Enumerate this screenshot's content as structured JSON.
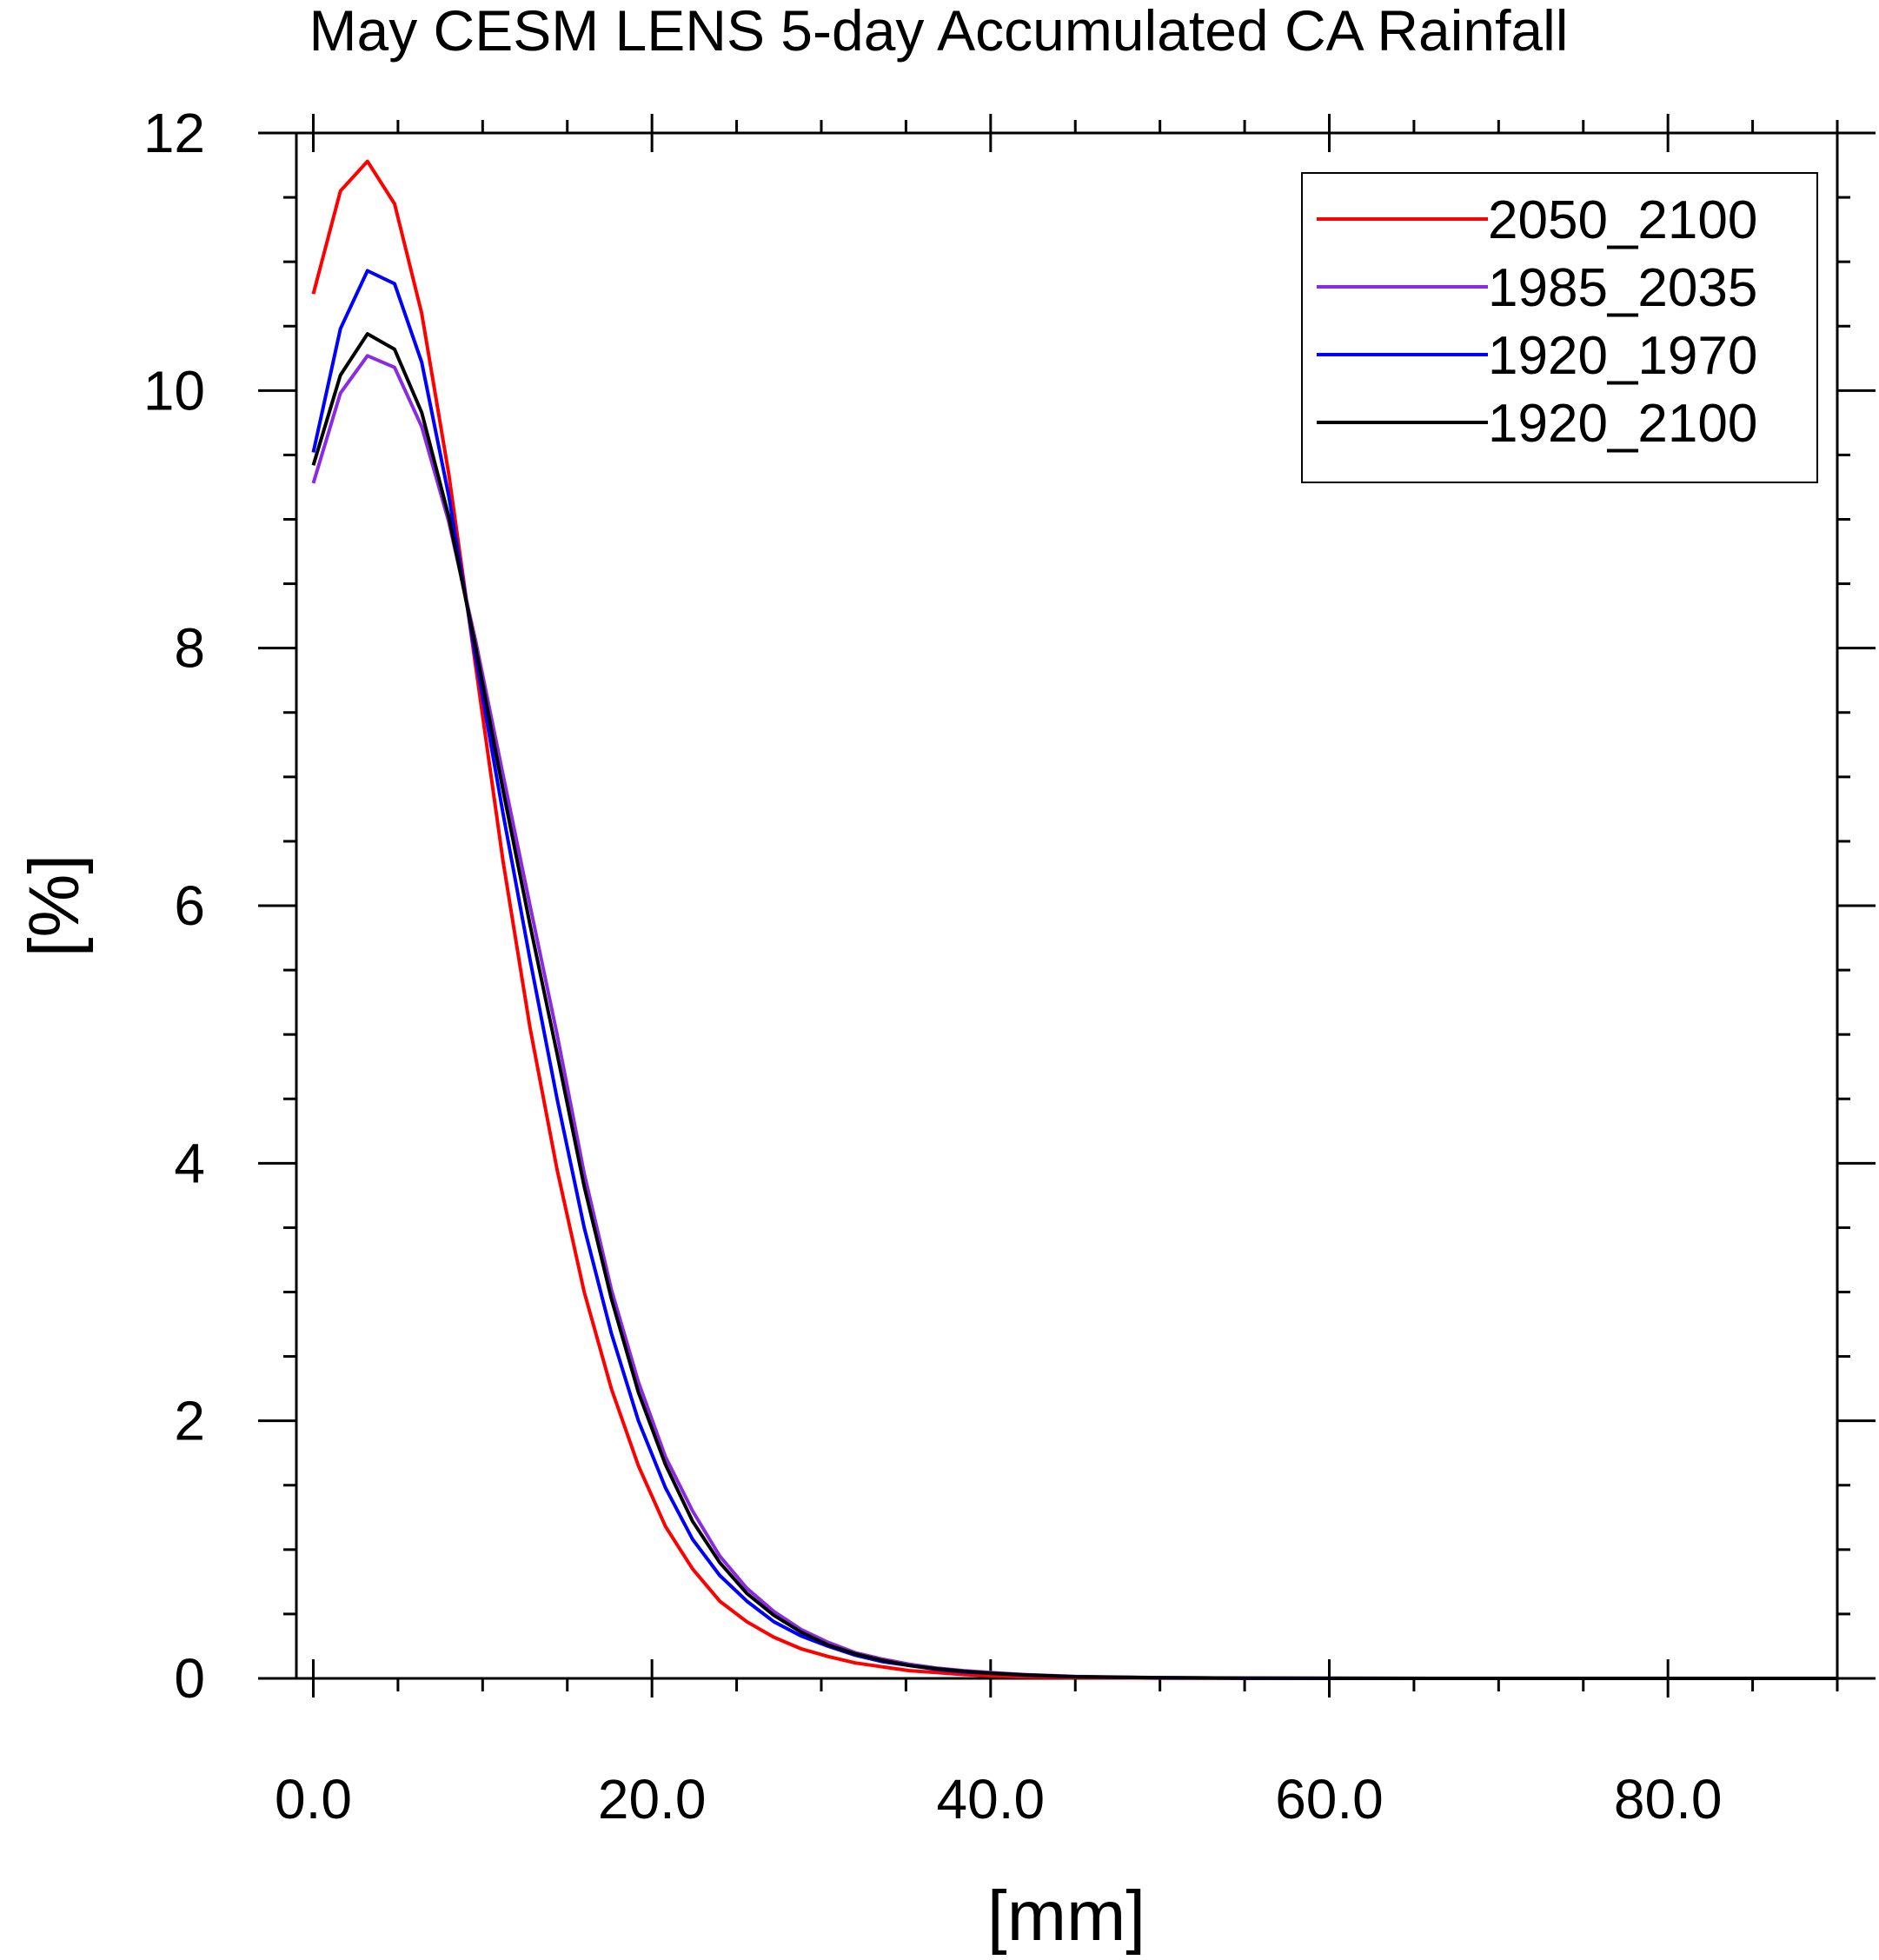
{
  "chart_data": {
    "type": "line",
    "title": "May CESM LENS 5-day Accumulated CA Rainfall",
    "xlabel": "[mm]",
    "ylabel": "[%]",
    "xlim": [
      -1,
      90
    ],
    "ylim": [
      0,
      12
    ],
    "xticks": [
      0,
      20,
      40,
      60,
      80
    ],
    "xtick_labels": [
      "0.0",
      "20.0",
      "40.0",
      "60.0",
      "80.0"
    ],
    "yticks": [
      0,
      2,
      4,
      6,
      8,
      10,
      12
    ],
    "ytick_labels": [
      "0",
      "2",
      "4",
      "6",
      "8",
      "10",
      "12"
    ],
    "legend_position": "top-right",
    "x": [
      0,
      1.6,
      3.2,
      4.8,
      6.4,
      8,
      9.6,
      11.2,
      12.8,
      14.4,
      16,
      17.6,
      19.2,
      20.8,
      22.4,
      24,
      25.6,
      27.2,
      28.8,
      30.4,
      32,
      33.6,
      35.2,
      36.8,
      38.4,
      40,
      42,
      45,
      50,
      55,
      60,
      70,
      80,
      90
    ],
    "series": [
      {
        "name": "2050_2100",
        "color": "#ff0000",
        "values": [
          10.75,
          11.55,
          11.78,
          11.45,
          10.6,
          9.35,
          7.85,
          6.35,
          5.05,
          3.95,
          3.0,
          2.25,
          1.65,
          1.18,
          0.85,
          0.6,
          0.44,
          0.32,
          0.23,
          0.17,
          0.12,
          0.09,
          0.06,
          0.045,
          0.03,
          0.02,
          0.012,
          0.006,
          0.002,
          0.001,
          0,
          0,
          0,
          0
        ]
      },
      {
        "name": "1985_2035",
        "color": "#8a2be2",
        "values": [
          9.28,
          9.98,
          10.27,
          10.18,
          9.72,
          8.98,
          8.05,
          7.02,
          6.0,
          5.0,
          3.92,
          3.02,
          2.3,
          1.72,
          1.3,
          0.95,
          0.7,
          0.52,
          0.38,
          0.28,
          0.2,
          0.15,
          0.11,
          0.08,
          0.06,
          0.045,
          0.03,
          0.015,
          0.006,
          0.002,
          0.001,
          0,
          0,
          0
        ]
      },
      {
        "name": "1920_1970",
        "color": "#0000ff",
        "values": [
          9.52,
          10.48,
          10.93,
          10.83,
          10.22,
          9.18,
          7.92,
          6.72,
          5.58,
          4.5,
          3.5,
          2.68,
          2.0,
          1.48,
          1.08,
          0.8,
          0.6,
          0.44,
          0.33,
          0.25,
          0.18,
          0.13,
          0.1,
          0.07,
          0.05,
          0.04,
          0.025,
          0.012,
          0.005,
          0.002,
          0.001,
          0,
          0,
          0
        ]
      },
      {
        "name": "1920_2100",
        "color": "#000000",
        "values": [
          9.42,
          10.12,
          10.44,
          10.32,
          9.83,
          9.02,
          8.0,
          6.9,
          5.85,
          4.85,
          3.82,
          2.95,
          2.22,
          1.66,
          1.22,
          0.9,
          0.66,
          0.49,
          0.36,
          0.26,
          0.19,
          0.14,
          0.1,
          0.075,
          0.055,
          0.04,
          0.027,
          0.013,
          0.005,
          0.002,
          0.001,
          0,
          0,
          0
        ]
      }
    ]
  }
}
